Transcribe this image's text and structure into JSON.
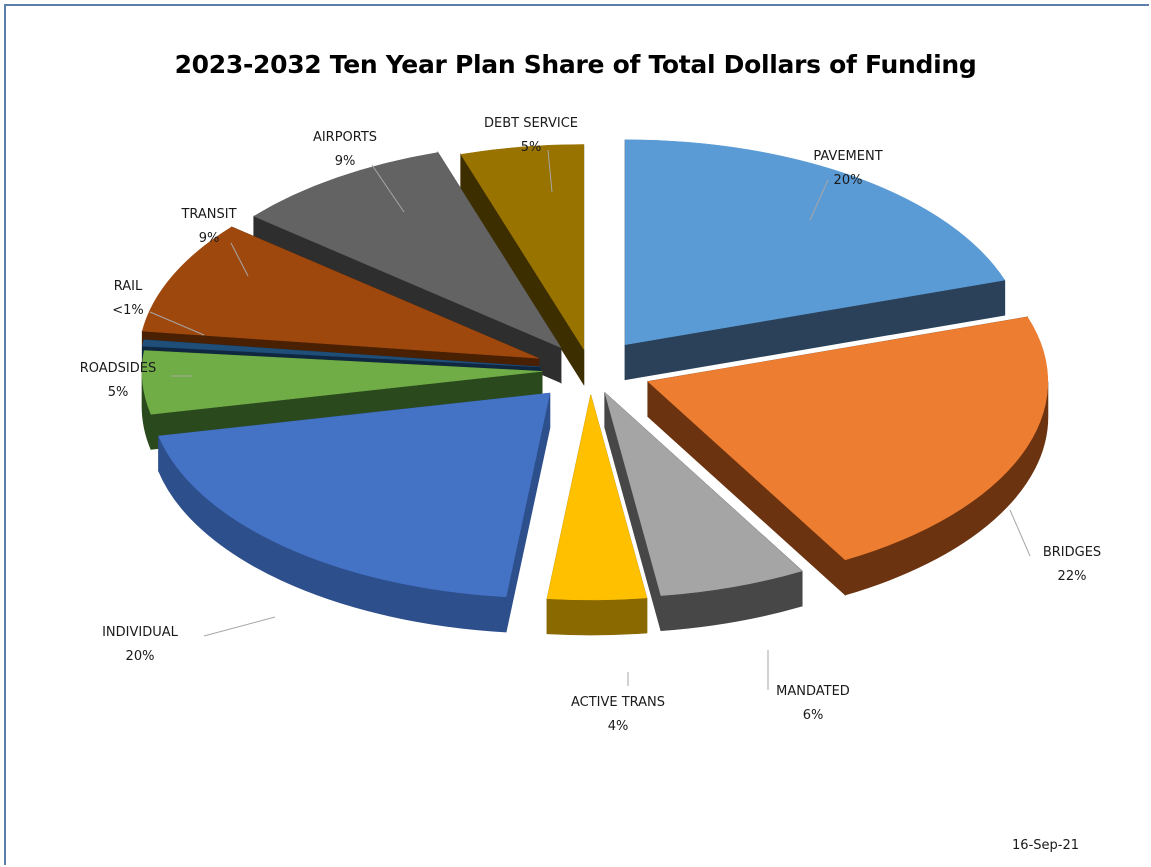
{
  "chart_data": {
    "type": "pie",
    "title": "2023-2032 Ten Year Plan Share of Total Dollars of Funding",
    "slices": [
      {
        "name": "PAVEMENT",
        "label": "20%",
        "value": 20,
        "color": "#5b9bd5",
        "side": "#2a4159"
      },
      {
        "name": "BRIDGES",
        "label": "22%",
        "value": 22,
        "color": "#ed7d31",
        "side": "#6b3310"
      },
      {
        "name": "MANDATED",
        "label": "6%",
        "value": 6,
        "color": "#a5a5a5",
        "side": "#474747"
      },
      {
        "name": "ACTIVE TRANS",
        "label": "4%",
        "value": 4,
        "color": "#ffc000",
        "side": "#8a6a00"
      },
      {
        "name": "INDIVIDUAL",
        "label": "20%",
        "value": 20,
        "color": "#4472c4",
        "side": "#2d4f8c"
      },
      {
        "name": "ROADSIDES",
        "label": "5%",
        "value": 5,
        "color": "#70ad47",
        "side": "#2a4a1e"
      },
      {
        "name": "RAIL",
        "label": "<1%",
        "value": 0.5,
        "color": "#1f4e79",
        "side": "#0f2740"
      },
      {
        "name": "TRANSIT",
        "label": "9%",
        "value": 9,
        "color": "#9e480e",
        "side": "#4a2003"
      },
      {
        "name": "AIRPORTS",
        "label": "9%",
        "value": 9,
        "color": "#636363",
        "side": "#2e2e2e"
      },
      {
        "name": "DEBT SERVICE",
        "label": "5%",
        "value": 5,
        "color": "#997300",
        "side": "#3d2e00"
      }
    ],
    "legend": "none"
  },
  "footer": {
    "date": "16-Sep-21"
  }
}
